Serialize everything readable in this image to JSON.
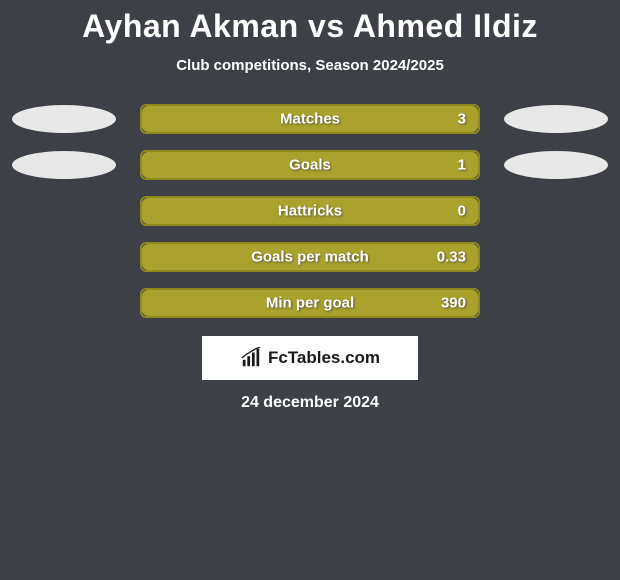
{
  "title": "Ayhan Akman vs Ahmed Ildiz",
  "subtitle": "Club competitions, Season 2024/2025",
  "colors": {
    "background": "#3d4147",
    "bar_fill": "#a9a22d",
    "bar_border": "#8e881f",
    "oval": "#e8e8e8",
    "text": "#ffffff"
  },
  "stats": [
    {
      "label": "Matches",
      "value": "3",
      "fill_pct": 100,
      "show_ovals": true
    },
    {
      "label": "Goals",
      "value": "1",
      "fill_pct": 100,
      "show_ovals": true
    },
    {
      "label": "Hattricks",
      "value": "0",
      "fill_pct": 100,
      "show_ovals": false
    },
    {
      "label": "Goals per match",
      "value": "0.33",
      "fill_pct": 100,
      "show_ovals": false
    },
    {
      "label": "Min per goal",
      "value": "390",
      "fill_pct": 100,
      "show_ovals": false
    }
  ],
  "logo": {
    "text": "FcTables.com"
  },
  "date": "24 december 2024"
}
